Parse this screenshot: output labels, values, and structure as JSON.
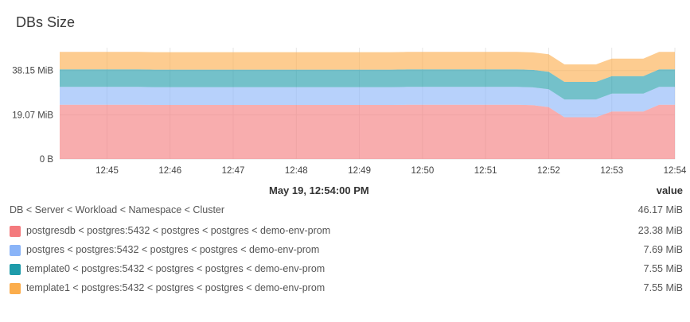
{
  "panel": {
    "title": "DBs Size"
  },
  "chart_data": {
    "type": "area",
    "stacked": true,
    "title": "DBs Size",
    "xlabel": "",
    "ylabel": "",
    "y_ticks": [
      {
        "label": "0 B",
        "value": 0
      },
      {
        "label": "19.07 MiB",
        "value": 19.07
      },
      {
        "label": "38.15 MiB",
        "value": 38.15
      }
    ],
    "x_ticks": [
      "12:45",
      "12:46",
      "12:47",
      "12:48",
      "12:49",
      "12:50",
      "12:51",
      "12:52",
      "12:53",
      "12:54"
    ],
    "ylim": [
      0,
      48
    ],
    "x": [
      "12:44:15",
      "12:44:30",
      "12:44:45",
      "12:45:00",
      "12:45:15",
      "12:45:30",
      "12:45:45",
      "12:46:00",
      "12:46:15",
      "12:46:30",
      "12:46:45",
      "12:47:00",
      "12:47:15",
      "12:47:30",
      "12:47:45",
      "12:48:00",
      "12:48:15",
      "12:48:30",
      "12:48:45",
      "12:49:00",
      "12:49:15",
      "12:49:30",
      "12:49:45",
      "12:50:00",
      "12:50:15",
      "12:50:30",
      "12:50:45",
      "12:51:00",
      "12:51:15",
      "12:51:30",
      "12:51:45",
      "12:52:00",
      "12:52:15",
      "12:52:30",
      "12:52:45",
      "12:53:00",
      "12:53:15",
      "12:53:30",
      "12:53:45",
      "12:54:00"
    ],
    "series": [
      {
        "name": "postgresdb < postgres:5432 < postgres < postgres < demo-env-prom",
        "color": "#f47a7d",
        "values": [
          23.4,
          23.4,
          23.4,
          23.4,
          23.4,
          23.4,
          23.3,
          23.3,
          23.3,
          23.3,
          23.3,
          23.3,
          23.3,
          23.3,
          23.3,
          23.3,
          23.3,
          23.3,
          23.3,
          23.3,
          23.3,
          23.3,
          23.4,
          23.4,
          23.4,
          23.4,
          23.4,
          23.4,
          23.4,
          23.4,
          23.2,
          22.4,
          18.0,
          18.0,
          18.0,
          20.5,
          20.5,
          20.5,
          23.4,
          23.4
        ]
      },
      {
        "name": "postgres < postgres:5432 < postgres < postgres < demo-env-prom",
        "color": "#8ab4f8",
        "values": [
          7.69,
          7.69,
          7.69,
          7.69,
          7.69,
          7.69,
          7.69,
          7.69,
          7.69,
          7.69,
          7.69,
          7.69,
          7.69,
          7.69,
          7.69,
          7.69,
          7.69,
          7.69,
          7.69,
          7.69,
          7.69,
          7.69,
          7.69,
          7.69,
          7.69,
          7.69,
          7.69,
          7.69,
          7.69,
          7.69,
          7.69,
          7.69,
          7.69,
          7.69,
          7.69,
          7.69,
          7.69,
          7.69,
          7.69,
          7.69
        ]
      },
      {
        "name": "template0 < postgres:5432 < postgres < postgres < demo-env-prom",
        "color": "#1e9baa",
        "values": [
          7.55,
          7.55,
          7.55,
          7.55,
          7.55,
          7.55,
          7.55,
          7.55,
          7.55,
          7.55,
          7.55,
          7.55,
          7.55,
          7.55,
          7.55,
          7.55,
          7.55,
          7.55,
          7.55,
          7.55,
          7.55,
          7.55,
          7.55,
          7.55,
          7.55,
          7.55,
          7.55,
          7.55,
          7.55,
          7.55,
          7.55,
          7.55,
          7.55,
          7.55,
          7.55,
          7.55,
          7.55,
          7.55,
          7.55,
          7.55
        ]
      },
      {
        "name": "template1 < postgres:5432 < postgres < postgres < demo-env-prom",
        "color": "#fbad4c",
        "values": [
          7.55,
          7.55,
          7.55,
          7.55,
          7.55,
          7.55,
          7.55,
          7.55,
          7.55,
          7.55,
          7.55,
          7.55,
          7.55,
          7.55,
          7.55,
          7.55,
          7.55,
          7.55,
          7.55,
          7.55,
          7.55,
          7.55,
          7.55,
          7.55,
          7.55,
          7.55,
          7.55,
          7.55,
          7.55,
          7.55,
          7.55,
          7.55,
          7.55,
          7.55,
          7.55,
          7.55,
          7.55,
          7.55,
          7.55,
          7.55
        ]
      }
    ],
    "grid": true
  },
  "legend": {
    "time_header": "May 19, 12:54:00 PM",
    "value_header": "value",
    "group_label": "DB < Server < Workload < Namespace < Cluster",
    "group_value": "46.17 MiB",
    "rows": [
      {
        "label": "postgresdb < postgres:5432 < postgres < postgres < demo-env-prom",
        "value": "23.38 MiB",
        "color": "#f47a7d"
      },
      {
        "label": "postgres < postgres:5432 < postgres < postgres < demo-env-prom",
        "value": "7.69 MiB",
        "color": "#8ab4f8"
      },
      {
        "label": "template0 < postgres:5432 < postgres < postgres < demo-env-prom",
        "value": "7.55 MiB",
        "color": "#1e9baa"
      },
      {
        "label": "template1 < postgres:5432 < postgres < postgres < demo-env-prom",
        "value": "7.55 MiB",
        "color": "#fbad4c"
      }
    ]
  }
}
